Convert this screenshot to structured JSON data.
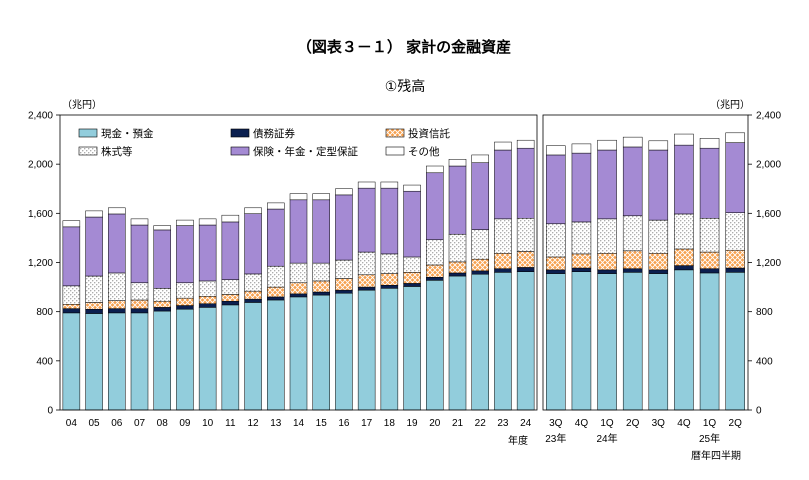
{
  "title": "（図表３－１） 家計の金融資産",
  "subtitle": "①残高",
  "chart_data": [
    {
      "type": "bar",
      "stacked": true,
      "categories": [
        "04",
        "05",
        "06",
        "07",
        "08",
        "09",
        "10",
        "11",
        "12",
        "13",
        "14",
        "15",
        "16",
        "17",
        "18",
        "19",
        "20",
        "21",
        "22",
        "23",
        "24"
      ],
      "xlabel": "年度",
      "ylabel": "（兆円）",
      "ylim": [
        0,
        2400
      ],
      "yticks": [
        0,
        400,
        800,
        1200,
        1600,
        2000,
        2400
      ],
      "ytick_labels": [
        "0",
        "400",
        "800",
        "1,200",
        "1,600",
        "2,000",
        "2,400"
      ],
      "grid": false,
      "legend_position": "top-left",
      "series": [
        {
          "name": "現金・預金",
          "color": "#92cddc",
          "pattern": "solid",
          "values": [
            790,
            785,
            790,
            790,
            805,
            820,
            835,
            855,
            875,
            895,
            920,
            935,
            950,
            975,
            990,
            1005,
            1055,
            1090,
            1105,
            1120,
            1125
          ]
        },
        {
          "name": "債務証券",
          "color": "#0b1f4f",
          "pattern": "solid",
          "values": [
            35,
            35,
            35,
            35,
            30,
            30,
            30,
            30,
            27,
            25,
            25,
            25,
            25,
            25,
            25,
            25,
            25,
            25,
            27,
            30,
            35
          ]
        },
        {
          "name": "投資信託",
          "color": "#f6a04d",
          "pattern": "crosshatch",
          "values": [
            35,
            55,
            65,
            70,
            50,
            60,
            60,
            55,
            65,
            80,
            90,
            90,
            95,
            100,
            95,
            90,
            100,
            90,
            95,
            125,
            130
          ]
        },
        {
          "name": "株式等",
          "color": "#ffffff",
          "pattern": "dots",
          "values": [
            150,
            215,
            225,
            140,
            105,
            125,
            125,
            120,
            140,
            170,
            160,
            145,
            150,
            185,
            160,
            125,
            205,
            225,
            240,
            280,
            270
          ]
        },
        {
          "name": "保険・年金・定型保証",
          "color": "#a48ad3",
          "pattern": "solid",
          "values": [
            480,
            480,
            480,
            470,
            475,
            465,
            455,
            470,
            490,
            465,
            515,
            515,
            530,
            520,
            535,
            535,
            545,
            555,
            545,
            560,
            570
          ]
        },
        {
          "name": "その他",
          "color": "#ffffff",
          "pattern": "solid",
          "values": [
            50,
            50,
            50,
            50,
            35,
            45,
            50,
            55,
            48,
            50,
            50,
            50,
            50,
            50,
            50,
            50,
            55,
            55,
            63,
            65,
            65
          ]
        }
      ]
    },
    {
      "type": "bar",
      "stacked": true,
      "categories": [
        "3Q",
        "4Q",
        "1Q",
        "2Q",
        "3Q",
        "4Q",
        "1Q",
        "2Q"
      ],
      "category_groups": [
        {
          "label": "23年",
          "start_index": 0
        },
        {
          "label": "24年",
          "start_index": 2
        },
        {
          "label": "25年",
          "start_index": 6
        }
      ],
      "xlabel": "暦年四半期",
      "ylabel": "（兆円）",
      "ylim": [
        0,
        2400
      ],
      "yticks": [
        0,
        400,
        800,
        1200,
        1600,
        2000,
        2400
      ],
      "ytick_labels": [
        "0",
        "400",
        "800",
        "1,200",
        "1,600",
        "2,000",
        "2,400"
      ],
      "grid": false,
      "series": [
        {
          "name": "現金・預金",
          "color": "#92cddc",
          "pattern": "solid",
          "values": [
            1110,
            1125,
            1110,
            1120,
            1110,
            1140,
            1115,
            1120
          ]
        },
        {
          "name": "債務証券",
          "color": "#0b1f4f",
          "pattern": "solid",
          "values": [
            30,
            30,
            30,
            30,
            30,
            35,
            35,
            35
          ]
        },
        {
          "name": "投資信託",
          "color": "#f6a04d",
          "pattern": "crosshatch",
          "values": [
            105,
            115,
            135,
            145,
            135,
            135,
            135,
            145
          ]
        },
        {
          "name": "株式等",
          "color": "#ffffff",
          "pattern": "dots",
          "values": [
            270,
            260,
            280,
            285,
            270,
            285,
            275,
            305
          ]
        },
        {
          "name": "保険・年金・定型保証",
          "color": "#a48ad3",
          "pattern": "solid",
          "values": [
            560,
            560,
            560,
            560,
            570,
            560,
            570,
            570
          ]
        },
        {
          "name": "その他",
          "color": "#ffffff",
          "pattern": "solid",
          "values": [
            75,
            75,
            80,
            80,
            75,
            90,
            80,
            80
          ]
        }
      ]
    }
  ]
}
